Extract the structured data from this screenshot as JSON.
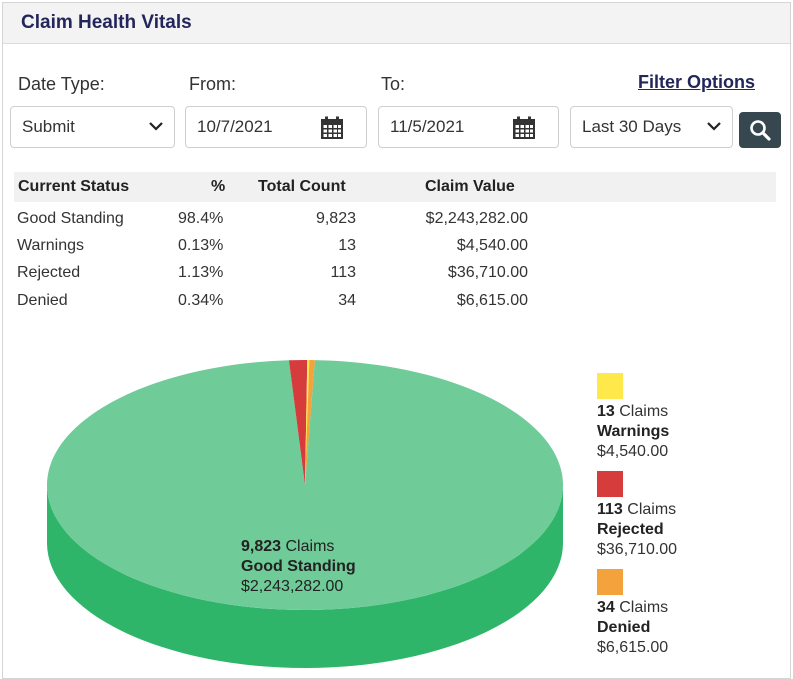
{
  "title": "Claim Health Vitals",
  "filters": {
    "date_type_label": "Date Type:",
    "from_label": "From:",
    "to_label": "To:",
    "filter_options_link": "Filter Options",
    "date_type_value": "Submit",
    "from_value": "10/7/2021",
    "to_value": "11/5/2021",
    "range_value": "Last 30 Days"
  },
  "table": {
    "headers": [
      "Current Status",
      "%",
      "Total Count",
      "Claim Value"
    ],
    "rows": [
      {
        "status": "Good Standing",
        "pct": "98.4%",
        "count": "9,823",
        "value": "$2,243,282.00"
      },
      {
        "status": "Warnings",
        "pct": "0.13%",
        "count": "13",
        "value": "$4,540.00"
      },
      {
        "status": "Rejected",
        "pct": "1.13%",
        "count": "113",
        "value": "$36,710.00"
      },
      {
        "status": "Denied",
        "pct": "0.34%",
        "count": "34",
        "value": "$6,615.00"
      }
    ]
  },
  "chart_data": {
    "type": "pie",
    "slices": [
      {
        "label": "Good Standing",
        "count": 9823,
        "count_text": "9,823",
        "unit": "Claims",
        "value_text": "$2,243,282.00",
        "color": "#6fcb98",
        "side_color": "#2fb56a"
      },
      {
        "label": "Warnings",
        "count": 13,
        "count_text": "13",
        "unit": "Claims",
        "value_text": "$4,540.00",
        "color": "#ffe84a"
      },
      {
        "label": "Rejected",
        "count": 113,
        "count_text": "113",
        "unit": "Claims",
        "value_text": "$36,710.00",
        "color": "#d63c3c"
      },
      {
        "label": "Denied",
        "count": 34,
        "count_text": "34",
        "unit": "Claims",
        "value_text": "$6,615.00",
        "color": "#f4a23c"
      }
    ]
  },
  "colors": {
    "title": "#23265a",
    "search_button": "#37474f"
  },
  "icons": {
    "date_type_dropdown": "chevron-down-icon",
    "from_picker": "calendar-icon",
    "to_picker": "calendar-icon",
    "range_dropdown": "chevron-down-icon",
    "search": "search-icon"
  }
}
